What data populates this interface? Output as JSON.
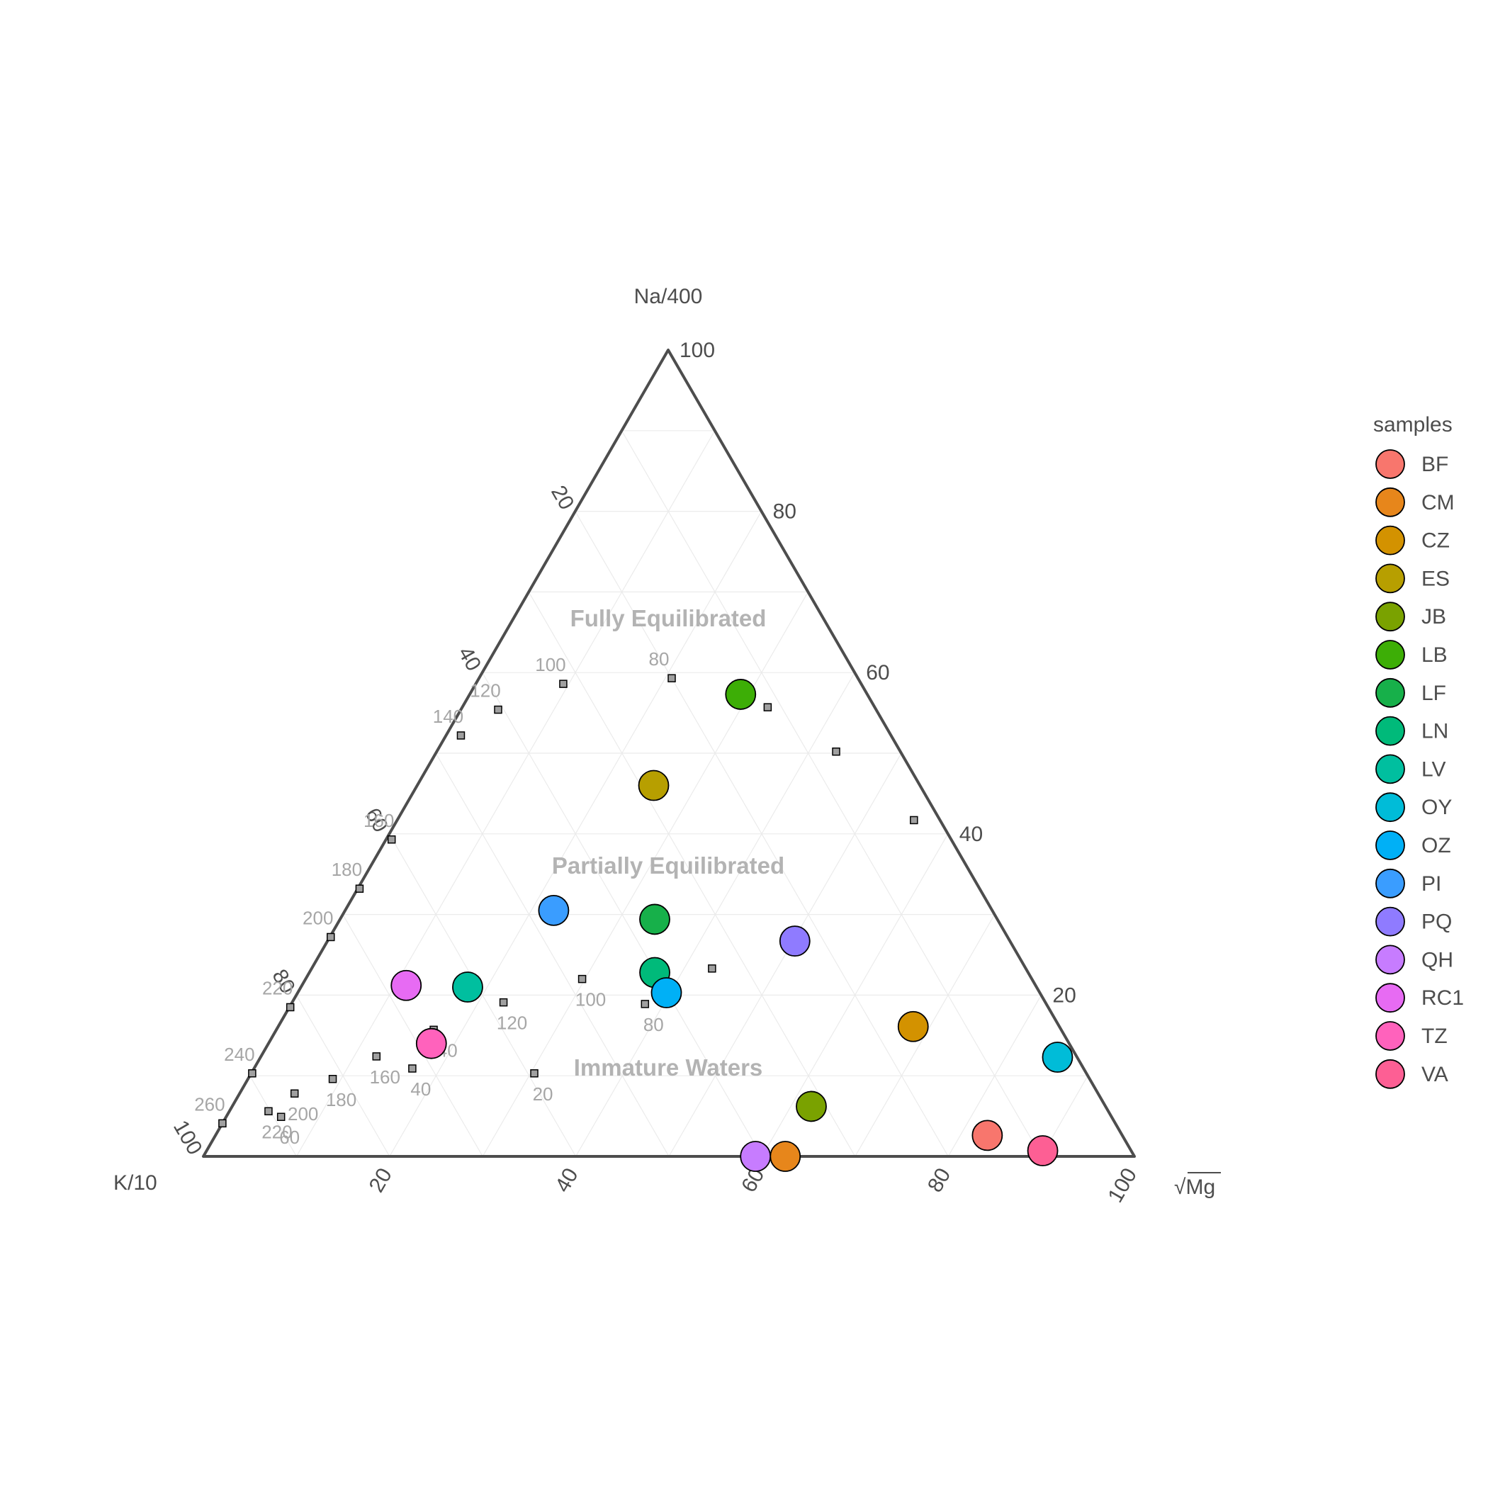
{
  "chart_data": {
    "type": "scatter",
    "subtype": "ternary",
    "axes": {
      "top": "Na/400",
      "left": "K/10",
      "right": "√Mg",
      "range": [
        0,
        100
      ],
      "ticks": [
        20,
        40,
        60,
        80,
        100
      ]
    },
    "grid": true,
    "regions": [
      "Fully Equilibrated",
      "Partially Equilibrated",
      "Immature Waters"
    ],
    "full_equilibrium_line": {
      "labels": [
        "80",
        "100",
        "120",
        "140",
        "160",
        "180",
        "200",
        "220",
        "240",
        "260"
      ],
      "points": [
        {
          "na": 59.3,
          "k": 20.0,
          "mg": 20.7
        },
        {
          "na": 58.6,
          "k": 32.0,
          "mg": 9.4
        },
        {
          "na": 55.4,
          "k": 40.6,
          "mg": 4.0
        },
        {
          "na": 52.2,
          "k": 46.2,
          "mg": 1.6
        },
        {
          "na": 39.3,
          "k": 60.1,
          "mg": 0.6
        },
        {
          "na": 33.2,
          "k": 66.6,
          "mg": 0.2
        },
        {
          "na": 27.2,
          "k": 72.7,
          "mg": 0.1
        },
        {
          "na": 18.5,
          "k": 81.4,
          "mg": 0.1
        },
        {
          "na": 10.3,
          "k": 89.6,
          "mg": 0.1
        },
        {
          "na": 4.1,
          "k": 95.9,
          "mg": 0.0
        }
      ]
    },
    "mg_isotherms": [
      {
        "label": "20",
        "points": [
          {
            "na": 41.7,
            "k": 2.8,
            "mg": 55.5
          },
          {
            "na": 10.3,
            "k": 59.3,
            "mg": 30.4
          }
        ]
      },
      {
        "na_unused": 0,
        "label": "40",
        "points": [
          {
            "na": 50.2,
            "k": 6.9,
            "mg": 42.9
          },
          {
            "na": 10.9,
            "k": 72.1,
            "mg": 17.0
          }
        ]
      },
      {
        "label": "60",
        "points": [
          {
            "na": 55.7,
            "k": 11.5,
            "mg": 32.8
          },
          {
            "na": 4.9,
            "k": 89.2,
            "mg": 5.9
          }
        ]
      },
      {
        "label": "80",
        "points": [
          {
            "na": 23.3,
            "k": 33.7,
            "mg": 43.0
          },
          {
            "na": 18.9,
            "k": 43.1,
            "mg": 38.0
          }
        ]
      },
      {
        "label": "100",
        "points": [
          {
            "na": 22.0,
            "k": 48.3,
            "mg": 29.7
          }
        ]
      },
      {
        "label": "120",
        "points": [
          {
            "na": 19.1,
            "k": 58.2,
            "mg": 22.7
          }
        ]
      },
      {
        "label": "140",
        "points": [
          {
            "na": 15.7,
            "k": 67.4,
            "mg": 16.9
          }
        ]
      },
      {
        "label": "160",
        "points": [
          {
            "na": 12.4,
            "k": 75.2,
            "mg": 12.4
          }
        ]
      },
      {
        "label": "180",
        "points": [
          {
            "na": 9.6,
            "k": 81.3,
            "mg": 9.1
          }
        ]
      },
      {
        "label": "200",
        "points": [
          {
            "na": 7.8,
            "k": 86.3,
            "mg": 5.9
          }
        ]
      },
      {
        "label": "220",
        "points": [
          {
            "na": 5.6,
            "k": 90.2,
            "mg": 4.2
          }
        ]
      }
    ],
    "legend": {
      "title": "samples",
      "position": "right"
    },
    "series": [
      {
        "name": "BF",
        "color": "#F8766D",
        "na": 2.6,
        "k": 14.5,
        "mg": 82.9
      },
      {
        "name": "CM",
        "color": "#E7861B",
        "na": 0.0,
        "k": 37.5,
        "mg": 62.5
      },
      {
        "name": "CZ",
        "color": "#D39200",
        "na": 16.1,
        "k": 15.7,
        "mg": 68.2
      },
      {
        "name": "ES",
        "color": "#B79F00",
        "na": 46.0,
        "k": 28.6,
        "mg": 25.4
      },
      {
        "name": "JB",
        "color": "#7AA200",
        "na": 6.2,
        "k": 31.6,
        "mg": 62.2
      },
      {
        "name": "LB",
        "color": "#3DAE06",
        "na": 57.3,
        "k": 13.6,
        "mg": 29.1
      },
      {
        "name": "LF",
        "color": "#17B04A",
        "na": 29.4,
        "k": 36.8,
        "mg": 33.8
      },
      {
        "name": "LN",
        "color": "#00BA7A",
        "na": 22.8,
        "k": 40.1,
        "mg": 37.1
      },
      {
        "name": "LV",
        "color": "#00BF9F",
        "na": 21.0,
        "k": 61.1,
        "mg": 17.9
      },
      {
        "name": "OY",
        "color": "#00BCD8",
        "na": 12.3,
        "k": 2.1,
        "mg": 85.6
      },
      {
        "name": "OZ",
        "color": "#00B0F6",
        "na": 20.3,
        "k": 40.1,
        "mg": 39.6
      },
      {
        "name": "PI",
        "color": "#3A9DFF",
        "na": 30.5,
        "k": 47.1,
        "mg": 22.4
      },
      {
        "name": "PQ",
        "color": "#8F7BFF",
        "na": 26.7,
        "k": 23.1,
        "mg": 50.2
      },
      {
        "name": "QH",
        "color": "#C77CFF",
        "na": 0.0,
        "k": 40.7,
        "mg": 59.3
      },
      {
        "name": "RC1",
        "color": "#E76BF3",
        "na": 21.2,
        "k": 67.6,
        "mg": 11.2
      },
      {
        "name": "TZ",
        "color": "#FF62BC",
        "na": 14.0,
        "k": 68.5,
        "mg": 17.5
      },
      {
        "name": "VA",
        "color": "#FD5F94",
        "na": 0.7,
        "k": 9.5,
        "mg": 89.8
      }
    ]
  }
}
